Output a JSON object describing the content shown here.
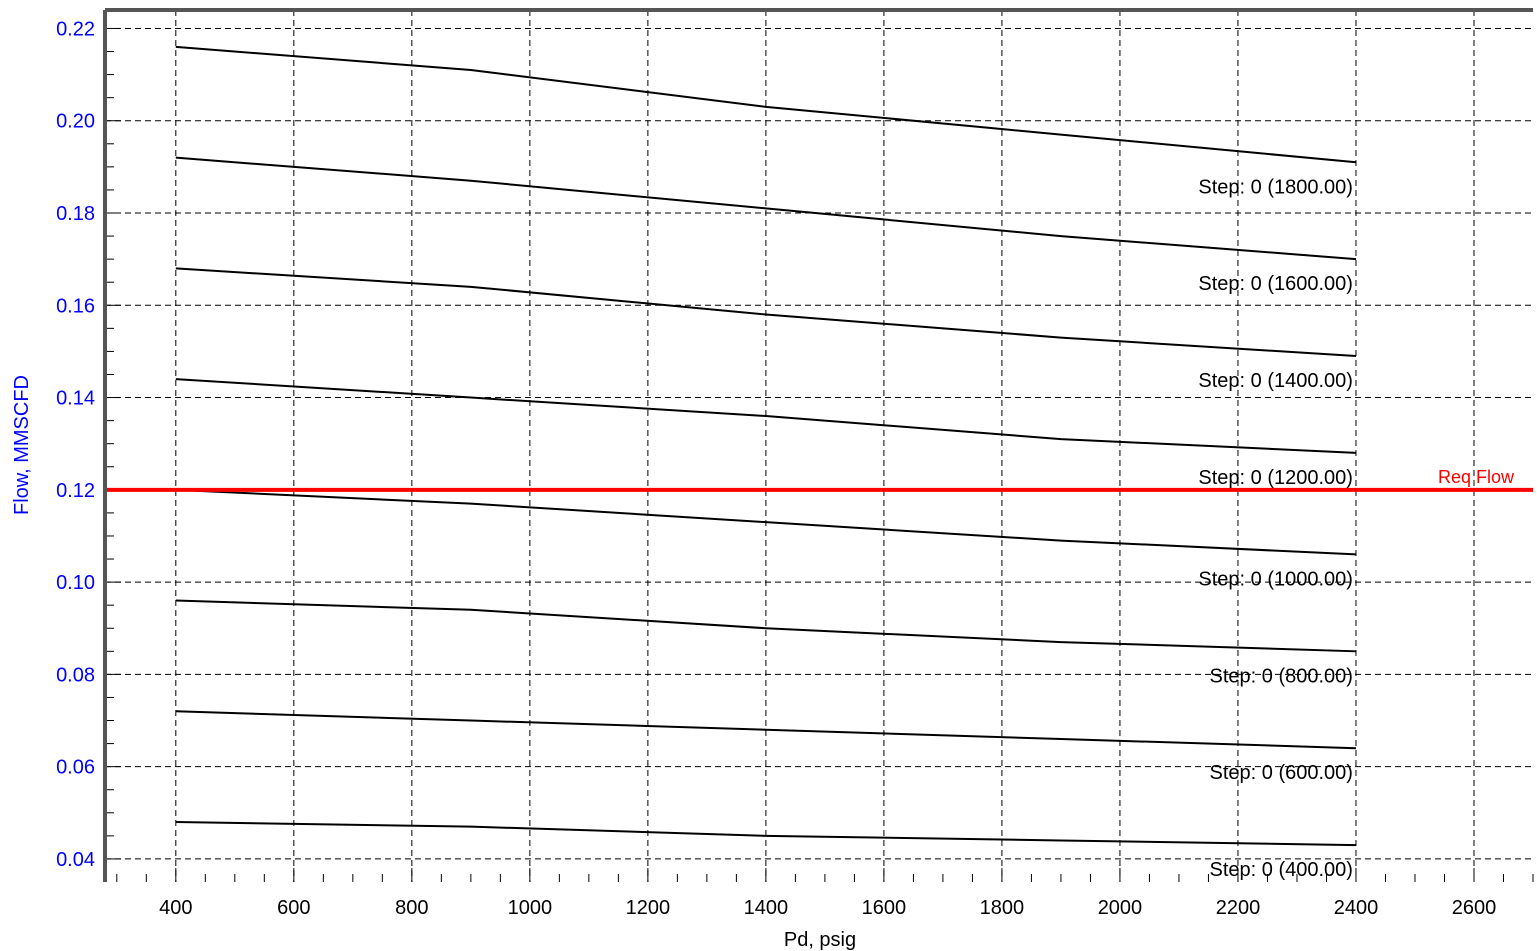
{
  "chart_data": {
    "type": "line",
    "xlabel": "Pd, psig",
    "ylabel": "Flow, MMSCFD",
    "xlim": [
      280,
      2700
    ],
    "ylim": [
      0.035,
      0.224
    ],
    "xticks": [
      400,
      600,
      800,
      1000,
      1200,
      1400,
      1600,
      1800,
      2000,
      2200,
      2400,
      2600
    ],
    "yticks": [
      0.04,
      0.06,
      0.08,
      0.1,
      0.12,
      0.14,
      0.16,
      0.18,
      0.2,
      0.22
    ],
    "ytick_labels": [
      "0.04",
      "0.06",
      "0.08",
      "0.10",
      "0.12",
      "0.14",
      "0.16",
      "0.18",
      "0.20",
      "0.22"
    ],
    "grid": true,
    "x": [
      400,
      900,
      1400,
      1900,
      2400
    ],
    "series": [
      {
        "name": "Step: 0 (1800.00)",
        "values": [
          0.216,
          0.211,
          0.203,
          0.197,
          0.191
        ]
      },
      {
        "name": "Step: 0 (1600.00)",
        "values": [
          0.192,
          0.187,
          0.181,
          0.175,
          0.17
        ]
      },
      {
        "name": "Step: 0 (1400.00)",
        "values": [
          0.168,
          0.164,
          0.158,
          0.153,
          0.149
        ]
      },
      {
        "name": "Step: 0 (1200.00)",
        "values": [
          0.144,
          0.14,
          0.136,
          0.131,
          0.128
        ]
      },
      {
        "name": "Step: 0 (1000.00)",
        "values": [
          0.12,
          0.117,
          0.113,
          0.109,
          0.106
        ]
      },
      {
        "name": "Step: 0 (800.00)",
        "values": [
          0.096,
          0.094,
          0.09,
          0.087,
          0.085
        ]
      },
      {
        "name": "Step: 0 (600.00)",
        "values": [
          0.072,
          0.07,
          0.068,
          0.066,
          0.064
        ]
      },
      {
        "name": "Step: 0 (400.00)",
        "values": [
          0.048,
          0.047,
          0.045,
          0.044,
          0.043
        ]
      }
    ],
    "reference_line": {
      "label": "Req Flow",
      "y": 0.12,
      "color": "#ff0000"
    },
    "colors": {
      "series": "#000000",
      "y_axis_text": "#0000ff",
      "x_axis_text": "#000000",
      "reference": "#ff0000"
    }
  }
}
